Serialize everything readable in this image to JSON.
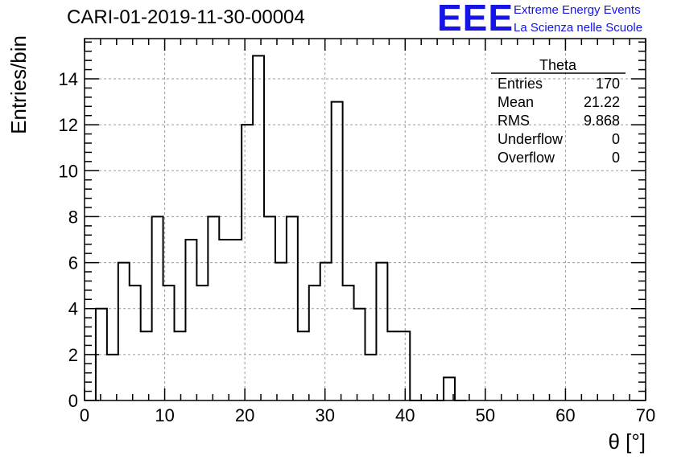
{
  "header": {
    "title": "CARI-01-2019-11-30-00004"
  },
  "logo": {
    "mark": "EEE",
    "line1": "Extreme Energy Events",
    "line2": "La Scienza nelle Scuole",
    "color": "#1414e6"
  },
  "chart_data": {
    "type": "bar",
    "histogram": true,
    "xlabel": "θ [°]",
    "ylabel": "Entries/bin",
    "xlim": [
      0,
      70
    ],
    "ylim": [
      0,
      15.75
    ],
    "x_ticks": [
      0,
      10,
      20,
      30,
      40,
      50,
      60,
      70
    ],
    "y_ticks": [
      0,
      2,
      4,
      6,
      8,
      10,
      12,
      14
    ],
    "grid": true,
    "bin_edges": [
      1.4,
      2.8,
      4.2,
      5.6,
      7.0,
      8.4,
      9.8,
      11.2,
      12.6,
      14.0,
      15.4,
      16.8,
      18.2,
      19.6,
      21.0,
      22.4,
      23.8,
      25.2,
      26.6,
      28.0,
      29.4,
      30.8,
      32.2,
      33.6,
      35.0,
      36.4,
      37.8,
      39.2,
      40.6,
      42.0,
      43.4,
      44.8,
      46.2,
      47.6
    ],
    "values": [
      4,
      2,
      6,
      5,
      3,
      8,
      5,
      3,
      7,
      5,
      8,
      7,
      7,
      12,
      15,
      8,
      6,
      8,
      3,
      5,
      6,
      13,
      5,
      4,
      2,
      6,
      3,
      3,
      0,
      0,
      0,
      1,
      0
    ],
    "stats_box": {
      "name": "Theta",
      "rows": [
        {
          "label": "Entries",
          "value": "170"
        },
        {
          "label": "Mean",
          "value": "21.22"
        },
        {
          "label": "RMS",
          "value": "9.868"
        },
        {
          "label": "Underflow",
          "value": "0"
        },
        {
          "label": "Overflow",
          "value": "0"
        }
      ]
    }
  }
}
